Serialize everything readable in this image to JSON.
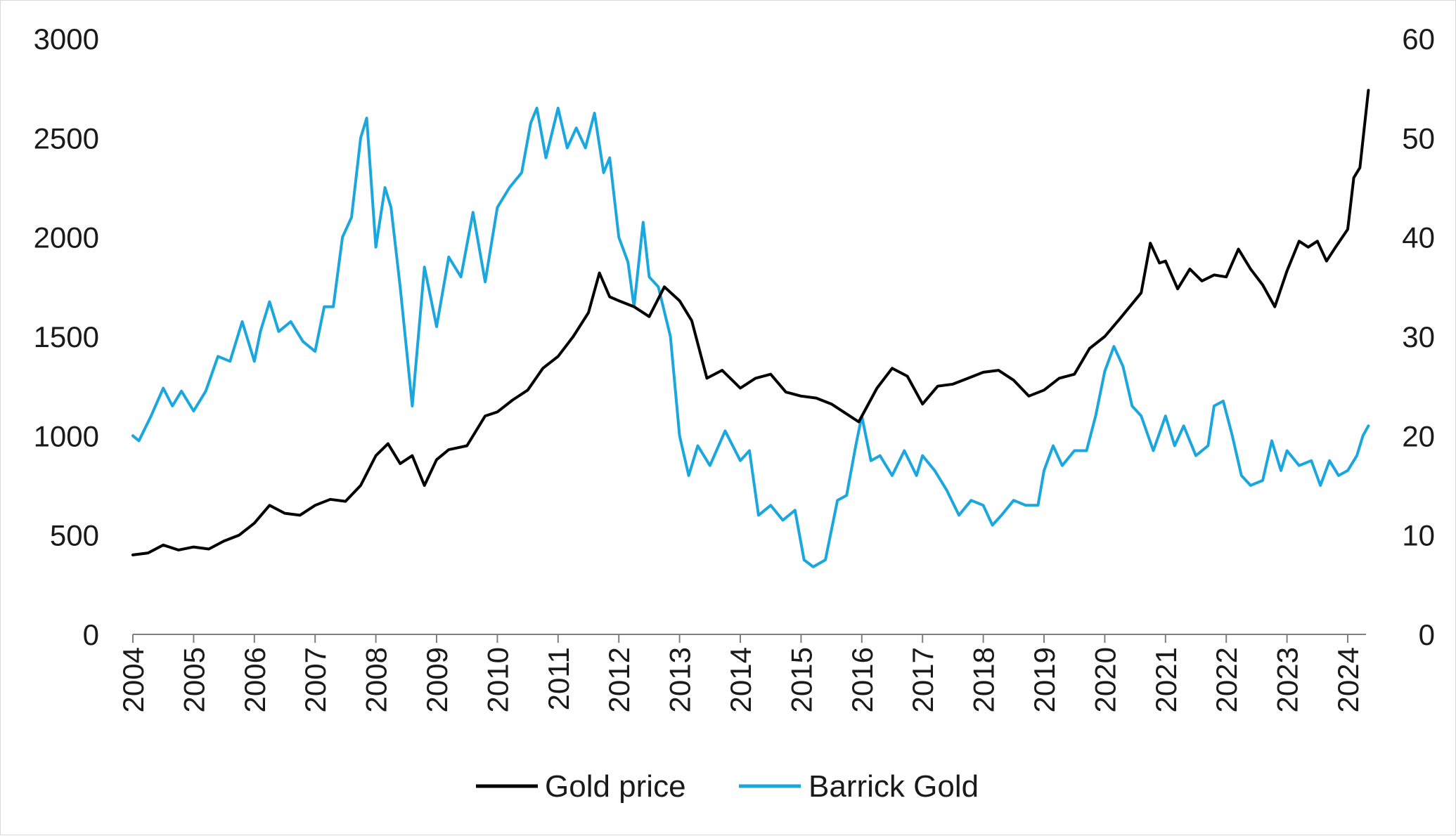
{
  "chart_data": {
    "type": "line",
    "title": "",
    "xlabel": "",
    "ylabel": "",
    "y2label": "",
    "grid": false,
    "legend_position": "bottom-center",
    "x_range": [
      2004.0,
      2024.34
    ],
    "x_ticks": [
      "2004",
      "2005",
      "2006",
      "2007",
      "2008",
      "2009",
      "2010",
      "2011",
      "2012",
      "2013",
      "2014",
      "2015",
      "2016",
      "2017",
      "2018",
      "2019",
      "2020",
      "2021",
      "2022",
      "2023",
      "2024"
    ],
    "y_left": {
      "range": [
        0,
        3000
      ],
      "ticks": [
        "0",
        "500",
        "1000",
        "1500",
        "2000",
        "2500",
        "3000"
      ]
    },
    "y_right": {
      "range": [
        0,
        60
      ],
      "ticks": [
        "0",
        "10",
        "20",
        "30",
        "40",
        "50",
        "60"
      ]
    },
    "series": [
      {
        "name": "Gold price",
        "axis": "left",
        "color": "#000000",
        "points": [
          [
            2004.0,
            400
          ],
          [
            2004.25,
            410
          ],
          [
            2004.5,
            450
          ],
          [
            2004.75,
            425
          ],
          [
            2005.0,
            440
          ],
          [
            2005.25,
            430
          ],
          [
            2005.5,
            470
          ],
          [
            2005.75,
            500
          ],
          [
            2006.0,
            560
          ],
          [
            2006.25,
            650
          ],
          [
            2006.5,
            610
          ],
          [
            2006.75,
            600
          ],
          [
            2007.0,
            650
          ],
          [
            2007.25,
            680
          ],
          [
            2007.5,
            670
          ],
          [
            2007.75,
            750
          ],
          [
            2008.0,
            900
          ],
          [
            2008.2,
            960
          ],
          [
            2008.4,
            860
          ],
          [
            2008.6,
            900
          ],
          [
            2008.8,
            750
          ],
          [
            2009.0,
            880
          ],
          [
            2009.2,
            930
          ],
          [
            2009.5,
            950
          ],
          [
            2009.8,
            1100
          ],
          [
            2010.0,
            1120
          ],
          [
            2010.25,
            1180
          ],
          [
            2010.5,
            1230
          ],
          [
            2010.75,
            1340
          ],
          [
            2011.0,
            1400
          ],
          [
            2011.25,
            1500
          ],
          [
            2011.5,
            1620
          ],
          [
            2011.68,
            1820
          ],
          [
            2011.85,
            1700
          ],
          [
            2012.0,
            1680
          ],
          [
            2012.25,
            1650
          ],
          [
            2012.5,
            1600
          ],
          [
            2012.75,
            1750
          ],
          [
            2013.0,
            1680
          ],
          [
            2013.2,
            1580
          ],
          [
            2013.45,
            1290
          ],
          [
            2013.7,
            1330
          ],
          [
            2014.0,
            1240
          ],
          [
            2014.25,
            1290
          ],
          [
            2014.5,
            1310
          ],
          [
            2014.75,
            1220
          ],
          [
            2015.0,
            1200
          ],
          [
            2015.25,
            1190
          ],
          [
            2015.5,
            1160
          ],
          [
            2015.75,
            1110
          ],
          [
            2015.95,
            1070
          ],
          [
            2016.25,
            1240
          ],
          [
            2016.5,
            1340
          ],
          [
            2016.75,
            1300
          ],
          [
            2017.0,
            1160
          ],
          [
            2017.25,
            1250
          ],
          [
            2017.5,
            1260
          ],
          [
            2017.75,
            1290
          ],
          [
            2018.0,
            1320
          ],
          [
            2018.25,
            1330
          ],
          [
            2018.5,
            1280
          ],
          [
            2018.75,
            1200
          ],
          [
            2019.0,
            1230
          ],
          [
            2019.25,
            1290
          ],
          [
            2019.5,
            1310
          ],
          [
            2019.75,
            1440
          ],
          [
            2020.0,
            1500
          ],
          [
            2020.25,
            1590
          ],
          [
            2020.6,
            1720
          ],
          [
            2020.75,
            1970
          ],
          [
            2020.9,
            1870
          ],
          [
            2021.0,
            1880
          ],
          [
            2021.2,
            1740
          ],
          [
            2021.4,
            1840
          ],
          [
            2021.6,
            1780
          ],
          [
            2021.8,
            1810
          ],
          [
            2022.0,
            1800
          ],
          [
            2022.2,
            1940
          ],
          [
            2022.4,
            1840
          ],
          [
            2022.6,
            1760
          ],
          [
            2022.8,
            1650
          ],
          [
            2023.0,
            1830
          ],
          [
            2023.2,
            1980
          ],
          [
            2023.35,
            1950
          ],
          [
            2023.5,
            1980
          ],
          [
            2023.65,
            1880
          ],
          [
            2023.8,
            1950
          ],
          [
            2024.0,
            2040
          ],
          [
            2024.1,
            2300
          ],
          [
            2024.2,
            2350
          ],
          [
            2024.34,
            2740
          ]
        ]
      },
      {
        "name": "Barrick Gold",
        "axis": "right",
        "color": "#1aa6de",
        "points": [
          [
            2004.0,
            20
          ],
          [
            2004.1,
            19.5
          ],
          [
            2004.3,
            22
          ],
          [
            2004.5,
            24.8
          ],
          [
            2004.65,
            23
          ],
          [
            2004.8,
            24.5
          ],
          [
            2005.0,
            22.5
          ],
          [
            2005.2,
            24.5
          ],
          [
            2005.4,
            28
          ],
          [
            2005.6,
            27.5
          ],
          [
            2005.8,
            31.5
          ],
          [
            2006.0,
            27.5
          ],
          [
            2006.1,
            30.5
          ],
          [
            2006.25,
            33.5
          ],
          [
            2006.4,
            30.5
          ],
          [
            2006.6,
            31.5
          ],
          [
            2006.8,
            29.5
          ],
          [
            2007.0,
            28.5
          ],
          [
            2007.15,
            33
          ],
          [
            2007.3,
            33
          ],
          [
            2007.45,
            40
          ],
          [
            2007.6,
            42
          ],
          [
            2007.75,
            50
          ],
          [
            2007.85,
            52
          ],
          [
            2008.0,
            39
          ],
          [
            2008.15,
            45
          ],
          [
            2008.25,
            43
          ],
          [
            2008.4,
            35
          ],
          [
            2008.6,
            23
          ],
          [
            2008.8,
            37
          ],
          [
            2009.0,
            31
          ],
          [
            2009.2,
            38
          ],
          [
            2009.4,
            36
          ],
          [
            2009.6,
            42.5
          ],
          [
            2009.8,
            35.5
          ],
          [
            2010.0,
            43
          ],
          [
            2010.2,
            45
          ],
          [
            2010.4,
            46.5
          ],
          [
            2010.55,
            51.5
          ],
          [
            2010.65,
            53
          ],
          [
            2010.8,
            48
          ],
          [
            2011.0,
            53
          ],
          [
            2011.15,
            49
          ],
          [
            2011.3,
            51
          ],
          [
            2011.45,
            49
          ],
          [
            2011.6,
            52.5
          ],
          [
            2011.75,
            46.5
          ],
          [
            2011.85,
            48
          ],
          [
            2012.0,
            40
          ],
          [
            2012.15,
            37.5
          ],
          [
            2012.25,
            33
          ],
          [
            2012.4,
            41.5
          ],
          [
            2012.5,
            36
          ],
          [
            2012.65,
            35
          ],
          [
            2012.85,
            30
          ],
          [
            2013.0,
            20
          ],
          [
            2013.15,
            16
          ],
          [
            2013.3,
            19
          ],
          [
            2013.5,
            17
          ],
          [
            2013.75,
            20.5
          ],
          [
            2014.0,
            17.5
          ],
          [
            2014.15,
            18.5
          ],
          [
            2014.3,
            12
          ],
          [
            2014.5,
            13
          ],
          [
            2014.7,
            11.5
          ],
          [
            2014.9,
            12.5
          ],
          [
            2015.05,
            7.5
          ],
          [
            2015.2,
            6.8
          ],
          [
            2015.4,
            7.5
          ],
          [
            2015.6,
            13.5
          ],
          [
            2015.75,
            14
          ],
          [
            2015.9,
            19
          ],
          [
            2016.0,
            22
          ],
          [
            2016.15,
            17.5
          ],
          [
            2016.3,
            18
          ],
          [
            2016.5,
            16
          ],
          [
            2016.7,
            18.5
          ],
          [
            2016.9,
            16
          ],
          [
            2017.0,
            18
          ],
          [
            2017.2,
            16.5
          ],
          [
            2017.4,
            14.5
          ],
          [
            2017.6,
            12
          ],
          [
            2017.8,
            13.5
          ],
          [
            2018.0,
            13
          ],
          [
            2018.15,
            11
          ],
          [
            2018.3,
            12
          ],
          [
            2018.5,
            13.5
          ],
          [
            2018.7,
            13
          ],
          [
            2018.9,
            13
          ],
          [
            2019.0,
            16.5
          ],
          [
            2019.15,
            19
          ],
          [
            2019.3,
            17
          ],
          [
            2019.5,
            18.5
          ],
          [
            2019.7,
            18.5
          ],
          [
            2019.85,
            22
          ],
          [
            2020.0,
            26.5
          ],
          [
            2020.15,
            29
          ],
          [
            2020.3,
            27
          ],
          [
            2020.45,
            23
          ],
          [
            2020.6,
            22
          ],
          [
            2020.8,
            18.5
          ],
          [
            2021.0,
            22
          ],
          [
            2021.15,
            19
          ],
          [
            2021.3,
            21
          ],
          [
            2021.5,
            18
          ],
          [
            2021.7,
            19
          ],
          [
            2021.8,
            23
          ],
          [
            2021.95,
            23.5
          ],
          [
            2022.1,
            20
          ],
          [
            2022.25,
            16
          ],
          [
            2022.4,
            15
          ],
          [
            2022.6,
            15.5
          ],
          [
            2022.75,
            19.5
          ],
          [
            2022.9,
            16.5
          ],
          [
            2023.0,
            18.5
          ],
          [
            2023.2,
            17
          ],
          [
            2023.4,
            17.5
          ],
          [
            2023.55,
            15
          ],
          [
            2023.7,
            17.5
          ],
          [
            2023.85,
            16
          ],
          [
            2024.0,
            16.5
          ],
          [
            2024.15,
            18
          ],
          [
            2024.25,
            20
          ],
          [
            2024.34,
            21
          ]
        ]
      }
    ]
  }
}
